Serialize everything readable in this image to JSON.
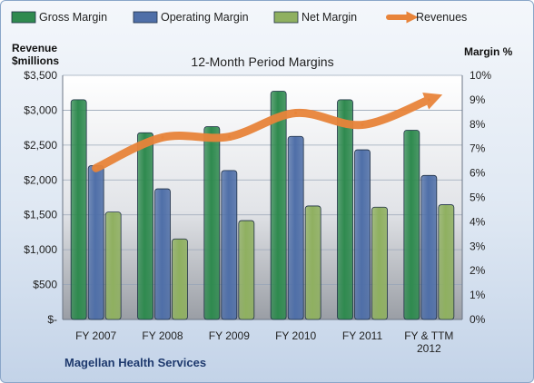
{
  "chart_data": {
    "type": "bar",
    "title": "12-Month Period Margins",
    "company": "Magellan Health Services",
    "y_left_label_line1": "Revenue",
    "y_left_label_line2": "$millions",
    "y_right_label": "Margin %",
    "categories": [
      [
        "FY 2007"
      ],
      [
        "FY 2008"
      ],
      [
        "FY 2009"
      ],
      [
        "FY 2010"
      ],
      [
        "FY 2011"
      ],
      [
        "FY & TTM",
        "2012"
      ]
    ],
    "y_left_ticks": [
      "$-",
      "$500",
      "$1,000",
      "$1,500",
      "$2,000",
      "$2,500",
      "$3,000",
      "$3,500"
    ],
    "y_right_ticks": [
      "0%",
      "1%",
      "2%",
      "3%",
      "4%",
      "5%",
      "6%",
      "7%",
      "8%",
      "9%",
      "10%"
    ],
    "ylim_left": [
      0,
      3500
    ],
    "ylim_right": [
      0,
      10
    ],
    "series": [
      {
        "name": "Gross Margin",
        "axis": "right",
        "color": "#2f8a4f",
        "values": [
          9.0,
          7.65,
          7.9,
          9.35,
          9.0,
          7.75
        ]
      },
      {
        "name": "Operating Margin",
        "axis": "right",
        "color": "#4f6fa8",
        "values": [
          6.3,
          5.35,
          6.1,
          7.5,
          6.95,
          5.9
        ]
      },
      {
        "name": "Net Margin",
        "axis": "right",
        "color": "#8fb060",
        "values": [
          4.4,
          3.3,
          4.05,
          4.65,
          4.6,
          4.7
        ]
      },
      {
        "name": "Revenues",
        "axis": "left",
        "type": "line",
        "color": "#e8843a",
        "values": [
          2170,
          2610,
          2620,
          2960,
          2790,
          3150
        ]
      }
    ],
    "grid": true,
    "legend_position": "top"
  }
}
